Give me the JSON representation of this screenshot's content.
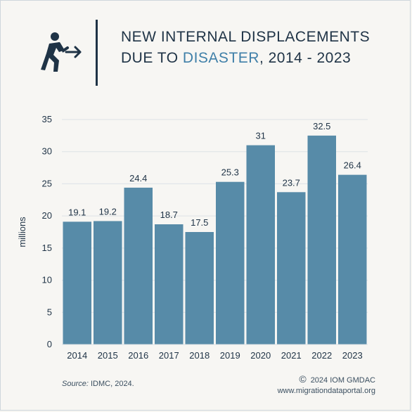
{
  "header": {
    "icon": "person-running-arrow-icon",
    "title_line1": "NEW INTERNAL DISPLACEMENTS",
    "title_line2_prefix": "DUE TO ",
    "title_line2_accent": "DISASTER",
    "title_line2_suffix": ", 2014 - 2023"
  },
  "colors": {
    "bar": "#578ba8",
    "accent": "#3f7fa8",
    "text": "#1f3346",
    "gridline": "#dde2e6"
  },
  "chart_data": {
    "type": "bar",
    "categories": [
      "2014",
      "2015",
      "2016",
      "2017",
      "2018",
      "2019",
      "2020",
      "2021",
      "2022",
      "2023"
    ],
    "values": [
      19.1,
      19.2,
      24.4,
      18.7,
      17.5,
      25.3,
      31,
      23.7,
      32.5,
      26.4
    ],
    "value_labels": [
      "19.1",
      "19.2",
      "24.4",
      "18.7",
      "17.5",
      "25.3",
      "31",
      "23.7",
      "32.5",
      "26.4"
    ],
    "title": "NEW INTERNAL DISPLACEMENTS DUE TO DISASTER, 2014 - 2023",
    "xlabel": "",
    "ylabel": "millions",
    "ylim": [
      0,
      35
    ],
    "yticks": [
      0,
      5,
      10,
      15,
      20,
      25,
      30,
      35
    ],
    "ytick_labels": [
      "0",
      "5",
      "10",
      "15",
      "20",
      "25",
      "30",
      "35"
    ],
    "grid": true
  },
  "footer": {
    "source_key": "Source:",
    "source_value": "IDMC, 2024.",
    "copyright_symbol": "©",
    "copyright_text": "2024 IOM GMDAC",
    "website": "www.migrationdataportal.org"
  }
}
